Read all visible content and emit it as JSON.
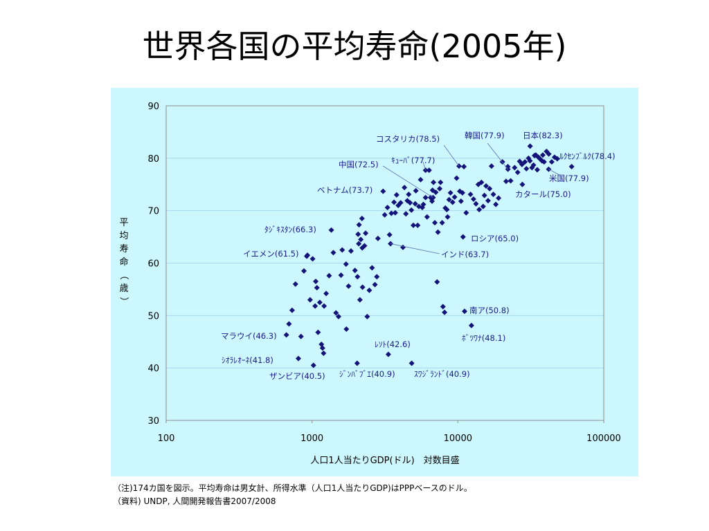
{
  "slide": {
    "title": "世界各国の平均寿命(2005年)",
    "note_1": "（注)174カ国を図示。平均寿命は男女計、所得水準（人口1人当たりGDP)はPPPベースのドル。",
    "note_2": "（資料) UNDP, 人間開発報告書2007/2008"
  },
  "colors": {
    "panel": "#ccf7fc",
    "gridline": "#a6d8ee",
    "marker": "#13137a",
    "label": "#1a1a8c"
  },
  "chart_data": {
    "type": "scatter",
    "x_scale": "log",
    "xlim": [
      100,
      100000
    ],
    "ylim": [
      30,
      90
    ],
    "xticks": [
      "100",
      "1000",
      "10000",
      "100000"
    ],
    "yticks": [
      "30",
      "40",
      "50",
      "60",
      "70",
      "80",
      "90"
    ],
    "xlabel": "人口1人当たりGDP(ドル)　対数目盛",
    "ylabel": "平均寿命（歳）",
    "grid": "horizontal",
    "labeled_points": [
      {
        "label": "日本(82.3)",
        "x": 31267,
        "y": 82.3
      },
      {
        "label": "韓国(77.9)",
        "x": 22029,
        "y": 77.9
      },
      {
        "label": "コスタリカ(78.5)",
        "x": 10180,
        "y": 78.5
      },
      {
        "label": "ｷｭｰﾊﾞ(77.7)",
        "x": 6000,
        "y": 77.7
      },
      {
        "label": "中国(72.5)",
        "x": 6757,
        "y": 72.5
      },
      {
        "label": "ベトナム(73.7)",
        "x": 3071,
        "y": 73.7
      },
      {
        "label": "ﾙｸｾﾝﾌﾞﾙｸ(78.4)",
        "x": 60228,
        "y": 78.4
      },
      {
        "label": "米国(77.9)",
        "x": 41890,
        "y": 77.9
      },
      {
        "label": "カタール(75.0)",
        "x": 27664,
        "y": 75.0
      },
      {
        "label": "ﾀｼﾞｷｽﾀﾝ(66.3)",
        "x": 1356,
        "y": 66.3
      },
      {
        "label": "ロシア(65.0)",
        "x": 10845,
        "y": 65.0
      },
      {
        "label": "イエメン(61.5)",
        "x": 930,
        "y": 61.5
      },
      {
        "label": "インド(63.7)",
        "x": 3452,
        "y": 63.7
      },
      {
        "label": "南ア(50.8)",
        "x": 11110,
        "y": 50.8
      },
      {
        "label": "ﾎﾞﾂﾜﾅ(48.1)",
        "x": 12387,
        "y": 48.1
      },
      {
        "label": "マラウイ(46.3)",
        "x": 667,
        "y": 46.3
      },
      {
        "label": "ﾚｿﾄ(42.6)",
        "x": 3335,
        "y": 42.6
      },
      {
        "label": "ｼｵﾗﾚｵｰﾈ(41.8)",
        "x": 806,
        "y": 41.8
      },
      {
        "label": "ザンビア(40.5)",
        "x": 1023,
        "y": 40.5
      },
      {
        "label": "ｼﾞﾝﾊﾞﾌﾞｴ(40.9)",
        "x": 2038,
        "y": 40.9
      },
      {
        "label": "ｽﾜｼﾞﾗﾝﾄﾞ(40.9)",
        "x": 4824,
        "y": 40.9
      }
    ],
    "points": [
      [
        695,
        48.4
      ],
      [
        730,
        51
      ],
      [
        770,
        56
      ],
      [
        840,
        46
      ],
      [
        880,
        58.5
      ],
      [
        920,
        61.3
      ],
      [
        970,
        53
      ],
      [
        1010,
        60.8
      ],
      [
        1060,
        56.5
      ],
      [
        1080,
        55.3
      ],
      [
        1050,
        51.8
      ],
      [
        1100,
        46.8
      ],
      [
        1130,
        52.5
      ],
      [
        1160,
        44.5
      ],
      [
        1180,
        43.8
      ],
      [
        1200,
        42.8
      ],
      [
        1210,
        51.8
      ],
      [
        1250,
        54.2
      ],
      [
        1310,
        57.6
      ],
      [
        1400,
        62
      ],
      [
        1460,
        50.5
      ],
      [
        1520,
        49.8
      ],
      [
        1580,
        57.7
      ],
      [
        1610,
        62.5
      ],
      [
        1720,
        47.4
      ],
      [
        1780,
        55.6
      ],
      [
        1850,
        62.3
      ],
      [
        1710,
        59.8
      ],
      [
        1970,
        58.6
      ],
      [
        2050,
        57.4
      ],
      [
        2090,
        63.7
      ],
      [
        2130,
        53
      ],
      [
        2070,
        65.5
      ],
      [
        2100,
        67.3
      ],
      [
        2160,
        64.5
      ],
      [
        2200,
        68.5
      ],
      [
        2210,
        62.9
      ],
      [
        2220,
        55.4
      ],
      [
        2290,
        63.3
      ],
      [
        2330,
        65.7
      ],
      [
        2390,
        49.8
      ],
      [
        2470,
        54.8
      ],
      [
        2580,
        59.1
      ],
      [
        2700,
        55.9
      ],
      [
        2780,
        57.4
      ],
      [
        2830,
        64.7
      ],
      [
        3150,
        69.2
      ],
      [
        3290,
        70.6
      ],
      [
        3400,
        65.4
      ],
      [
        3500,
        69.5
      ],
      [
        3650,
        71.6
      ],
      [
        3720,
        69.6
      ],
      [
        3800,
        73
      ],
      [
        3900,
        71
      ],
      [
        4050,
        71.5
      ],
      [
        4200,
        63
      ],
      [
        4300,
        74.4
      ],
      [
        4400,
        69.4
      ],
      [
        4500,
        71.9
      ],
      [
        4600,
        73.1
      ],
      [
        4700,
        71.5
      ],
      [
        4800,
        70.1
      ],
      [
        4950,
        67.2
      ],
      [
        5100,
        71.3
      ],
      [
        5150,
        73.8
      ],
      [
        5300,
        67.2
      ],
      [
        5400,
        70.8
      ],
      [
        5550,
        75.9
      ],
      [
        5700,
        70.6
      ],
      [
        5800,
        71.2
      ],
      [
        6000,
        72.5
      ],
      [
        6150,
        68.8
      ],
      [
        6350,
        77.7
      ],
      [
        6500,
        72.5
      ],
      [
        6650,
        71.8
      ],
      [
        6700,
        73.9
      ],
      [
        6800,
        75.4
      ],
      [
        6950,
        67.7
      ],
      [
        7050,
        73.5
      ],
      [
        7200,
        56.4
      ],
      [
        7300,
        65.9
      ],
      [
        7500,
        74.2
      ],
      [
        7600,
        75.4
      ],
      [
        7800,
        67.7
      ],
      [
        7900,
        51.7
      ],
      [
        8100,
        50.6
      ],
      [
        8200,
        70.5
      ],
      [
        8400,
        70.2
      ],
      [
        8500,
        68.8
      ],
      [
        8700,
        72.1
      ],
      [
        8900,
        73.4
      ],
      [
        9200,
        71.6
      ],
      [
        9500,
        72.6
      ],
      [
        9800,
        76.2
      ],
      [
        10300,
        73.7
      ],
      [
        10500,
        71.8
      ],
      [
        10750,
        73.4
      ],
      [
        11000,
        78.4
      ],
      [
        11400,
        69.6
      ],
      [
        12200,
        73.1
      ],
      [
        12800,
        72.2
      ],
      [
        13300,
        71.3
      ],
      [
        13800,
        75
      ],
      [
        14000,
        70.2
      ],
      [
        14500,
        75.4
      ],
      [
        14900,
        70.8
      ],
      [
        15200,
        72.9
      ],
      [
        15600,
        74.7
      ],
      [
        16100,
        71.9
      ],
      [
        16500,
        74.2
      ],
      [
        17000,
        78.5
      ],
      [
        17500,
        73.1
      ],
      [
        18200,
        71.2
      ],
      [
        19000,
        72.4
      ],
      [
        20200,
        79.3
      ],
      [
        21400,
        75.6
      ],
      [
        22000,
        78.4
      ],
      [
        23000,
        75.7
      ],
      [
        24500,
        78.2
      ],
      [
        25700,
        77.3
      ],
      [
        26500,
        79.4
      ],
      [
        27500,
        78.8
      ],
      [
        28800,
        79.3
      ],
      [
        29500,
        78
      ],
      [
        30500,
        80
      ],
      [
        31200,
        79.5
      ],
      [
        32200,
        78.2
      ],
      [
        33000,
        78.7
      ],
      [
        33500,
        80.5
      ],
      [
        34200,
        80.6
      ],
      [
        35000,
        77.8
      ],
      [
        35600,
        80.2
      ],
      [
        36500,
        79.9
      ],
      [
        37700,
        79.5
      ],
      [
        38200,
        80.6
      ],
      [
        39000,
        79.3
      ],
      [
        40500,
        81.3
      ],
      [
        42000,
        80.8
      ],
      [
        44000,
        79.3
      ],
      [
        46000,
        80.2
      ],
      [
        48000,
        79.9
      ]
    ]
  }
}
